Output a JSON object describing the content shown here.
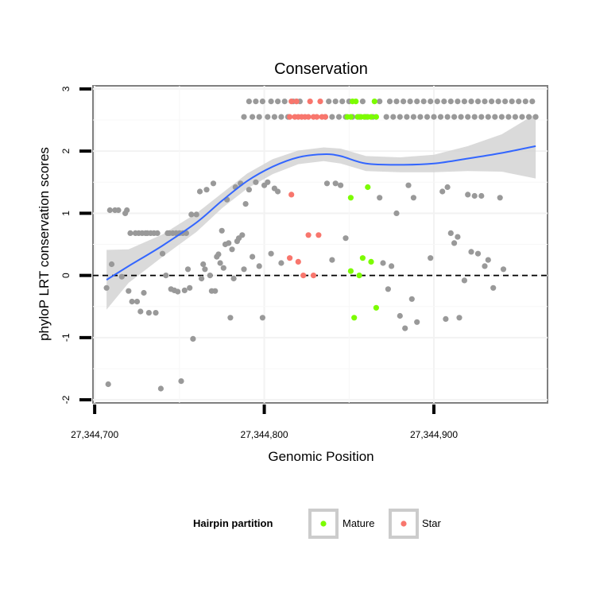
{
  "chart_data": {
    "type": "scatter",
    "title": "Conservation",
    "xlabel": "Genomic Position",
    "ylabel": "phyloP LRT conservation scores",
    "xlim": [
      27344699,
      27344967
    ],
    "ylim": [
      -2.05,
      3.05
    ],
    "x_ticks": [
      27344700,
      27344800,
      27344900
    ],
    "x_tick_labels": [
      "27,344,700",
      "27,344,800",
      "27,344,900"
    ],
    "y_ticks": [
      -2,
      -1,
      0,
      1,
      2,
      3
    ],
    "y_tick_labels": [
      "-2",
      "-1",
      "0",
      "1",
      "2",
      "3"
    ],
    "reference_line": {
      "y": 0,
      "style": "dashed"
    },
    "colors": {
      "other": "#999999",
      "Mature": "#7CFC00",
      "Star": "#F8766D",
      "smooth": "#3366FF",
      "ribbon": "#D3D3D3"
    },
    "legend": {
      "title": "Hairpin partition",
      "entries": [
        "Mature",
        "Star"
      ],
      "position": "bottom"
    },
    "series": [
      {
        "name": "Other",
        "points": [
          [
            27344707,
            -0.2
          ],
          [
            27344708,
            -1.75
          ],
          [
            27344709,
            1.05
          ],
          [
            27344710,
            0.18
          ],
          [
            27344712,
            1.05
          ],
          [
            27344714,
            1.05
          ],
          [
            27344716,
            -0.02
          ],
          [
            27344718,
            1.0
          ],
          [
            27344719,
            1.05
          ],
          [
            27344720,
            -0.25
          ],
          [
            27344721,
            0.68
          ],
          [
            27344722,
            -0.42
          ],
          [
            27344724,
            0.68
          ],
          [
            27344725,
            -0.42
          ],
          [
            27344726,
            0.68
          ],
          [
            27344727,
            -0.58
          ],
          [
            27344728,
            0.68
          ],
          [
            27344729,
            -0.28
          ],
          [
            27344730,
            0.68
          ],
          [
            27344731,
            0.68
          ],
          [
            27344732,
            -0.6
          ],
          [
            27344733,
            0.68
          ],
          [
            27344735,
            0.68
          ],
          [
            27344736,
            -0.6
          ],
          [
            27344737,
            0.68
          ],
          [
            27344739,
            -1.82
          ],
          [
            27344740,
            0.35
          ],
          [
            27344742,
            0.0
          ],
          [
            27344743,
            0.68
          ],
          [
            27344744,
            0.68
          ],
          [
            27344745,
            -0.22
          ],
          [
            27344746,
            0.68
          ],
          [
            27344747,
            -0.24
          ],
          [
            27344748,
            0.68
          ],
          [
            27344749,
            -0.26
          ],
          [
            27344750,
            0.68
          ],
          [
            27344751,
            -1.7
          ],
          [
            27344752,
            0.68
          ],
          [
            27344753,
            -0.24
          ],
          [
            27344754,
            0.68
          ],
          [
            27344755,
            0.1
          ],
          [
            27344756,
            -0.2
          ],
          [
            27344757,
            0.98
          ],
          [
            27344758,
            -1.02
          ],
          [
            27344760,
            0.98
          ],
          [
            27344762,
            1.35
          ],
          [
            27344763,
            -0.05
          ],
          [
            27344764,
            0.18
          ],
          [
            27344765,
            0.1
          ],
          [
            27344766,
            1.38
          ],
          [
            27344768,
            0.0
          ],
          [
            27344769,
            -0.25
          ],
          [
            27344770,
            1.48
          ],
          [
            27344771,
            -0.25
          ],
          [
            27344772,
            0.3
          ],
          [
            27344773,
            0.34
          ],
          [
            27344774,
            0.2
          ],
          [
            27344775,
            0.72
          ],
          [
            27344776,
            0.12
          ],
          [
            27344777,
            0.5
          ],
          [
            27344778,
            1.22
          ],
          [
            27344779,
            0.52
          ],
          [
            27344780,
            -0.68
          ],
          [
            27344781,
            0.42
          ],
          [
            27344782,
            -0.05
          ],
          [
            27344783,
            1.42
          ],
          [
            27344784,
            0.55
          ],
          [
            27344785,
            0.6
          ],
          [
            27344786,
            1.48
          ],
          [
            27344787,
            0.65
          ],
          [
            27344788,
            0.1
          ],
          [
            27344789,
            1.15
          ],
          [
            27344791,
            1.38
          ],
          [
            27344793,
            0.3
          ],
          [
            27344795,
            1.5
          ],
          [
            27344797,
            0.15
          ],
          [
            27344799,
            -0.68
          ],
          [
            27344800,
            1.45
          ],
          [
            27344802,
            1.5
          ],
          [
            27344804,
            0.35
          ],
          [
            27344806,
            1.4
          ],
          [
            27344808,
            1.35
          ],
          [
            27344810,
            0.2
          ],
          [
            27344837,
            1.48
          ],
          [
            27344840,
            0.25
          ],
          [
            27344842,
            1.48
          ],
          [
            27344845,
            1.45
          ],
          [
            27344848,
            0.6
          ],
          [
            27344868,
            1.25
          ],
          [
            27344870,
            0.2
          ],
          [
            27344873,
            -0.22
          ],
          [
            27344875,
            0.15
          ],
          [
            27344878,
            1.0
          ],
          [
            27344880,
            -0.65
          ],
          [
            27344883,
            -0.85
          ],
          [
            27344885,
            1.45
          ],
          [
            27344887,
            -0.38
          ],
          [
            27344888,
            1.25
          ],
          [
            27344890,
            -0.75
          ],
          [
            27344898,
            0.28
          ],
          [
            27344905,
            1.35
          ],
          [
            27344907,
            -0.7
          ],
          [
            27344908,
            1.42
          ],
          [
            27344910,
            0.68
          ],
          [
            27344912,
            0.52
          ],
          [
            27344914,
            0.62
          ],
          [
            27344915,
            -0.68
          ],
          [
            27344918,
            -0.08
          ],
          [
            27344920,
            1.3
          ],
          [
            27344922,
            0.38
          ],
          [
            27344924,
            1.28
          ],
          [
            27344926,
            0.35
          ],
          [
            27344928,
            1.28
          ],
          [
            27344930,
            0.15
          ],
          [
            27344932,
            0.25
          ],
          [
            27344935,
            -0.2
          ],
          [
            27344939,
            1.25
          ],
          [
            27344941,
            0.1
          ],
          [
            27344788,
            2.55
          ],
          [
            27344791,
            2.8
          ],
          [
            27344793,
            2.55
          ],
          [
            27344795,
            2.8
          ],
          [
            27344797,
            2.55
          ],
          [
            27344799,
            2.8
          ],
          [
            27344802,
            2.55
          ],
          [
            27344804,
            2.8
          ],
          [
            27344806,
            2.55
          ],
          [
            27344808,
            2.8
          ],
          [
            27344810,
            2.55
          ],
          [
            27344812,
            2.8
          ],
          [
            27344814,
            2.55
          ],
          [
            27344817,
            2.8
          ],
          [
            27344819,
            2.8
          ],
          [
            27344821,
            2.8
          ],
          [
            27344836,
            2.55
          ],
          [
            27344838,
            2.8
          ],
          [
            27344840,
            2.55
          ],
          [
            27344842,
            2.8
          ],
          [
            27344844,
            2.55
          ],
          [
            27344846,
            2.8
          ],
          [
            27344848,
            2.55
          ],
          [
            27344850,
            2.8
          ],
          [
            27344852,
            2.55
          ],
          [
            27344856,
            2.55
          ],
          [
            27344858,
            2.8
          ],
          [
            27344860,
            2.55
          ],
          [
            27344864,
            2.55
          ],
          [
            27344868,
            2.8
          ],
          [
            27344872,
            2.55
          ],
          [
            27344874,
            2.8
          ],
          [
            27344876,
            2.55
          ],
          [
            27344878,
            2.8
          ],
          [
            27344880,
            2.55
          ],
          [
            27344882,
            2.8
          ],
          [
            27344884,
            2.55
          ],
          [
            27344886,
            2.8
          ],
          [
            27344888,
            2.55
          ],
          [
            27344890,
            2.8
          ],
          [
            27344892,
            2.55
          ],
          [
            27344894,
            2.8
          ],
          [
            27344896,
            2.55
          ],
          [
            27344898,
            2.8
          ],
          [
            27344900,
            2.55
          ],
          [
            27344902,
            2.8
          ],
          [
            27344904,
            2.55
          ],
          [
            27344906,
            2.8
          ],
          [
            27344908,
            2.55
          ],
          [
            27344910,
            2.8
          ],
          [
            27344912,
            2.55
          ],
          [
            27344914,
            2.8
          ],
          [
            27344916,
            2.55
          ],
          [
            27344918,
            2.8
          ],
          [
            27344920,
            2.55
          ],
          [
            27344922,
            2.8
          ],
          [
            27344924,
            2.55
          ],
          [
            27344926,
            2.8
          ],
          [
            27344928,
            2.55
          ],
          [
            27344930,
            2.8
          ],
          [
            27344932,
            2.55
          ],
          [
            27344934,
            2.8
          ],
          [
            27344936,
            2.55
          ],
          [
            27344938,
            2.8
          ],
          [
            27344940,
            2.55
          ],
          [
            27344942,
            2.8
          ],
          [
            27344944,
            2.55
          ],
          [
            27344946,
            2.8
          ],
          [
            27344948,
            2.55
          ],
          [
            27344950,
            2.8
          ],
          [
            27344952,
            2.55
          ],
          [
            27344954,
            2.8
          ],
          [
            27344956,
            2.55
          ],
          [
            27344958,
            2.8
          ],
          [
            27344960,
            2.55
          ]
        ]
      },
      {
        "name": "Mature",
        "points": [
          [
            27344851,
            1.25
          ],
          [
            27344851,
            0.07
          ],
          [
            27344853,
            -0.68
          ],
          [
            27344856,
            0.0
          ],
          [
            27344858,
            0.28
          ],
          [
            27344861,
            1.42
          ],
          [
            27344863,
            0.22
          ],
          [
            27344866,
            -0.52
          ],
          [
            27344849,
            2.55
          ],
          [
            27344851,
            2.55
          ],
          [
            27344852,
            2.8
          ],
          [
            27344854,
            2.8
          ],
          [
            27344855,
            2.55
          ],
          [
            27344857,
            2.55
          ],
          [
            27344859,
            2.55
          ],
          [
            27344861,
            2.55
          ],
          [
            27344863,
            2.55
          ],
          [
            27344865,
            2.8
          ],
          [
            27344866,
            2.55
          ]
        ]
      },
      {
        "name": "Star",
        "points": [
          [
            27344816,
            1.3
          ],
          [
            27344815,
            0.28
          ],
          [
            27344820,
            0.22
          ],
          [
            27344823,
            0.0
          ],
          [
            27344826,
            0.65
          ],
          [
            27344829,
            0.0
          ],
          [
            27344832,
            0.65
          ],
          [
            27344815,
            2.55
          ],
          [
            27344816,
            2.8
          ],
          [
            27344818,
            2.55
          ],
          [
            27344819,
            2.8
          ],
          [
            27344820,
            2.55
          ],
          [
            27344822,
            2.55
          ],
          [
            27344824,
            2.55
          ],
          [
            27344826,
            2.55
          ],
          [
            27344827,
            2.8
          ],
          [
            27344829,
            2.55
          ],
          [
            27344831,
            2.55
          ],
          [
            27344833,
            2.8
          ],
          [
            27344834,
            2.55
          ],
          [
            27344836,
            2.55
          ]
        ]
      }
    ],
    "smooth": {
      "x": [
        27344707,
        27344720,
        27344740,
        27344760,
        27344775,
        27344790,
        27344805,
        27344820,
        27344835,
        27344845,
        27344860,
        27344880,
        27344900,
        27344920,
        27344940,
        27344960
      ],
      "y": [
        -0.07,
        0.15,
        0.48,
        0.85,
        1.2,
        1.52,
        1.75,
        1.9,
        1.95,
        1.92,
        1.8,
        1.78,
        1.8,
        1.88,
        1.97,
        2.08
      ],
      "lower": [
        -0.55,
        -0.12,
        0.3,
        0.7,
        1.08,
        1.4,
        1.63,
        1.79,
        1.84,
        1.8,
        1.68,
        1.66,
        1.66,
        1.68,
        1.67,
        1.56
      ],
      "upper": [
        0.41,
        0.42,
        0.66,
        1.0,
        1.32,
        1.64,
        1.87,
        2.01,
        2.06,
        2.04,
        1.92,
        1.9,
        1.94,
        2.08,
        2.27,
        2.6
      ]
    }
  }
}
